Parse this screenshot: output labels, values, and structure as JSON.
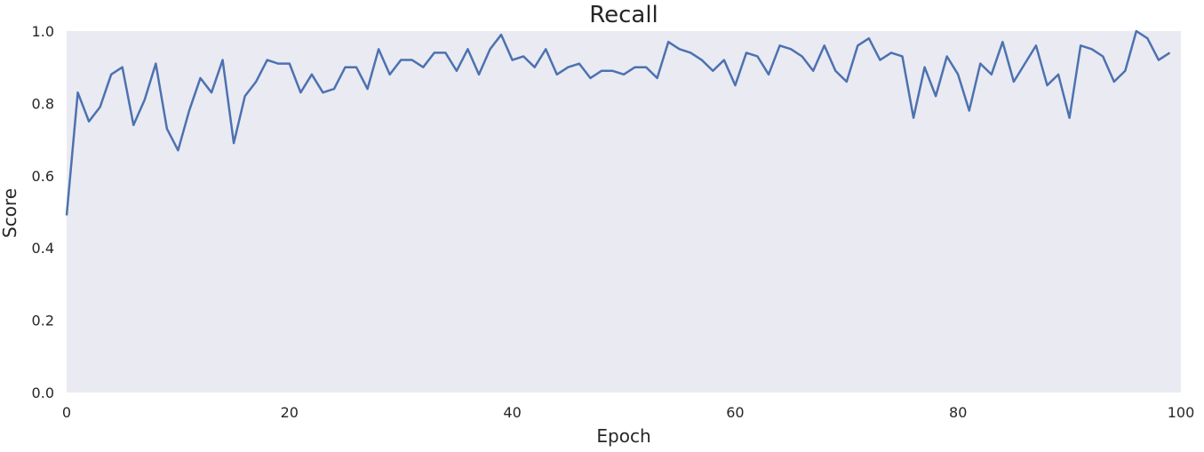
{
  "chart_data": {
    "type": "line",
    "title": "Recall",
    "xlabel": "Epoch",
    "ylabel": "Score",
    "xlim": [
      0,
      100
    ],
    "ylim": [
      0.0,
      1.0
    ],
    "xticks": [
      "0",
      "20",
      "40",
      "60",
      "80",
      "100"
    ],
    "yticks": [
      "0.0",
      "0.2",
      "0.4",
      "0.6",
      "0.8",
      "1.0"
    ],
    "grid": false,
    "colors": {
      "background": "#eaeaf2",
      "line": "#4c72b0",
      "text": "#262626"
    },
    "series": [
      {
        "x": [
          0,
          1,
          2,
          3,
          4,
          5,
          6,
          7,
          8,
          9,
          10,
          11,
          12,
          13,
          14,
          15,
          16,
          17,
          18,
          19,
          20,
          21,
          22,
          23,
          24,
          25,
          26,
          27,
          28,
          29,
          30,
          31,
          32,
          33,
          34,
          35,
          36,
          37,
          38,
          39,
          40,
          41,
          42,
          43,
          44,
          45,
          46,
          47,
          48,
          49,
          50,
          51,
          52,
          53,
          54,
          55,
          56,
          57,
          58,
          59,
          60,
          61,
          62,
          63,
          64,
          65,
          66,
          67,
          68,
          69,
          70,
          71,
          72,
          73,
          74,
          75,
          76,
          77,
          78,
          79,
          80,
          81,
          82,
          83,
          84,
          85,
          86,
          87,
          88,
          89,
          90,
          91,
          92,
          93,
          94,
          95,
          96,
          97,
          98,
          99
        ],
        "values": [
          0.49,
          0.83,
          0.75,
          0.79,
          0.88,
          0.9,
          0.74,
          0.81,
          0.91,
          0.73,
          0.67,
          0.78,
          0.87,
          0.83,
          0.92,
          0.69,
          0.82,
          0.86,
          0.92,
          0.91,
          0.91,
          0.83,
          0.88,
          0.83,
          0.84,
          0.9,
          0.9,
          0.84,
          0.95,
          0.88,
          0.92,
          0.92,
          0.9,
          0.94,
          0.94,
          0.89,
          0.95,
          0.88,
          0.95,
          0.99,
          0.92,
          0.93,
          0.9,
          0.95,
          0.88,
          0.9,
          0.91,
          0.87,
          0.89,
          0.89,
          0.88,
          0.9,
          0.9,
          0.87,
          0.97,
          0.95,
          0.94,
          0.92,
          0.89,
          0.92,
          0.85,
          0.94,
          0.93,
          0.88,
          0.96,
          0.95,
          0.93,
          0.89,
          0.96,
          0.89,
          0.86,
          0.96,
          0.98,
          0.92,
          0.94,
          0.93,
          0.76,
          0.9,
          0.82,
          0.93,
          0.88,
          0.78,
          0.91,
          0.88,
          0.97,
          0.86,
          0.91,
          0.96,
          0.85,
          0.88,
          0.76,
          0.96,
          0.95,
          0.93,
          0.86,
          0.89,
          1.0,
          0.98,
          0.92,
          0.94
        ]
      }
    ]
  }
}
